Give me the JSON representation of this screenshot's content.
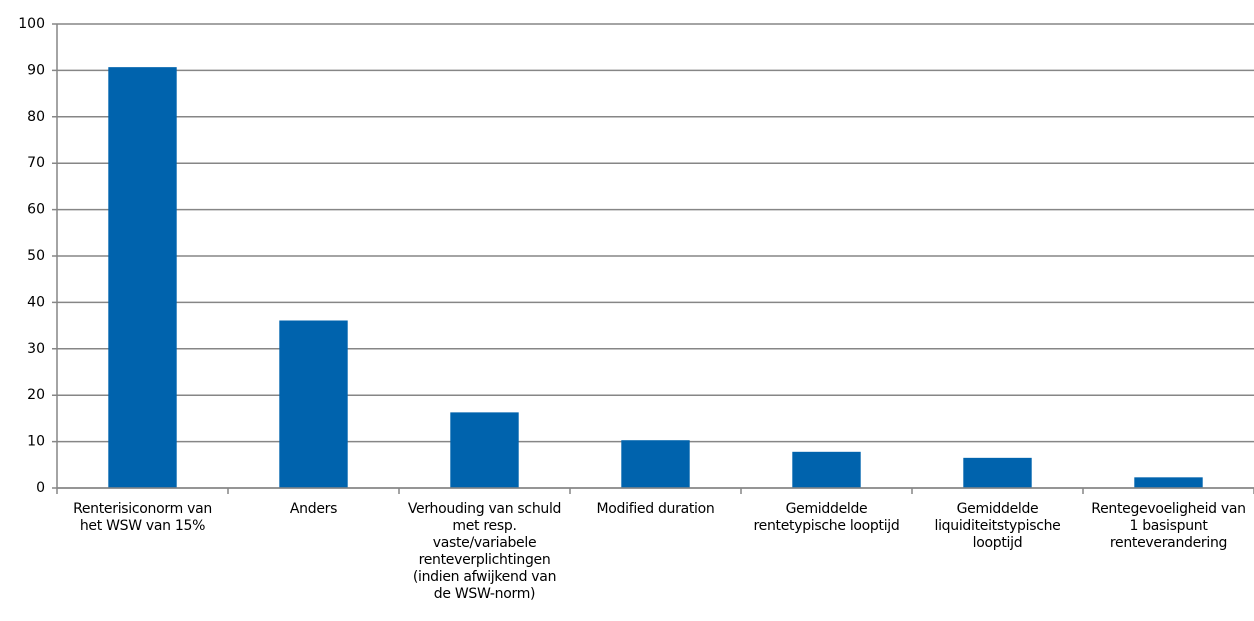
{
  "chart_data": {
    "type": "bar",
    "categories": [
      "Renterisiconorm van het WSW van 15%",
      "Anders",
      "Verhouding van schuld met resp. vaste/variabele renteverplichtingen (indien afwijkend van de WSW-norm)",
      "Modified duration",
      "Gemiddelde rentetypische looptijd",
      "Gemiddelde liquiditeitstypische looptijd",
      "Rentegevoeligheid van 1 basispunt renteverandering"
    ],
    "values": [
      90.7,
      36.1,
      16.3,
      10.3,
      7.8,
      6.5,
      2.3
    ],
    "color": "#0063ad",
    "ylim": [
      0,
      100
    ],
    "yticks": [
      0,
      10,
      20,
      30,
      40,
      50,
      60,
      70,
      80,
      90,
      100
    ],
    "grid": true
  }
}
